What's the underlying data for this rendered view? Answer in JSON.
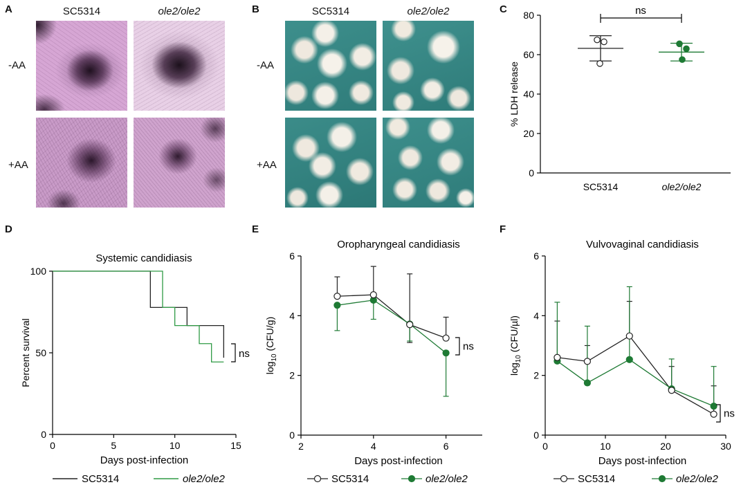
{
  "colors": {
    "wt": "#222222",
    "mut": "#1e7a34",
    "mut_line": "#2e9a44"
  },
  "panelA": {
    "letter": "A",
    "col1": "SC5314",
    "col2": "ole2/ole2",
    "row1": "-AA",
    "row2": "+AA"
  },
  "panelB": {
    "letter": "B",
    "col1": "SC5314",
    "col2": "ole2/ole2",
    "row1": "-AA",
    "row2": "+AA"
  },
  "panelC": {
    "letter": "C",
    "significance": "ns"
  },
  "panelD": {
    "letter": "D",
    "legend_wt": "SC5314",
    "legend_mut": "ole2/ole2",
    "significance": "ns"
  },
  "panelE": {
    "letter": "E",
    "legend_wt": "SC5314",
    "legend_mut": "ole2/ole2",
    "significance": "ns"
  },
  "panelF": {
    "letter": "F",
    "legend_wt": "SC5314",
    "legend_mut": "ole2/ole2",
    "significance": "ns"
  },
  "chart_data": [
    {
      "id": "C",
      "type": "scatter",
      "title": "",
      "xlabel": "",
      "ylabel": "% LDH release",
      "categories": [
        "SC5314",
        "ole2/ole2"
      ],
      "ylim": [
        0,
        80
      ],
      "yticks": [
        0,
        20,
        40,
        60,
        80
      ],
      "series": [
        {
          "name": "SC5314",
          "points": [
            67.5,
            66.5,
            55.5
          ],
          "mean": 63.2,
          "err_low": 56.8,
          "err_high": 69.6
        },
        {
          "name": "ole2/ole2",
          "points": [
            65.5,
            63.0,
            57.5
          ],
          "mean": 61.3,
          "err_low": 56.8,
          "err_high": 65.8
        }
      ]
    },
    {
      "id": "D",
      "type": "line",
      "step": true,
      "title": "Systemic candidiasis",
      "xlabel": "Days post-infection",
      "ylabel": "Percent survival",
      "xlim": [
        0,
        15
      ],
      "ylim": [
        0,
        100
      ],
      "xticks": [
        0,
        5,
        10,
        15
      ],
      "yticks": [
        0,
        50,
        100
      ],
      "series": [
        {
          "name": "SC5314",
          "x": [
            0,
            8,
            11,
            14
          ],
          "y": [
            100,
            77.8,
            66.7,
            55.6
          ]
        },
        {
          "name": "ole2/ole2",
          "x": [
            0,
            9,
            10,
            12,
            13,
            14
          ],
          "y": [
            100,
            77.8,
            66.7,
            55.6,
            44.4,
            44.4
          ]
        }
      ]
    },
    {
      "id": "E",
      "type": "line",
      "title": "Oropharyngeal candidiasis",
      "xlabel": "Days post-infection",
      "ylabel_main": "log",
      "ylabel_sub": "10",
      "ylabel_rest": " (CFU/g)",
      "xlim": [
        2,
        7
      ],
      "ylim": [
        0,
        6
      ],
      "xticks": [
        2,
        4,
        6
      ],
      "yticks": [
        0,
        2,
        4,
        6
      ],
      "series": [
        {
          "name": "SC5314",
          "x": [
            3,
            4,
            5,
            6
          ],
          "y": [
            4.65,
            4.7,
            3.7,
            3.25
          ],
          "err_high": [
            5.3,
            5.65,
            5.4,
            3.95
          ],
          "err_low": [
            null,
            null,
            3.1,
            null
          ]
        },
        {
          "name": "ole2/ole2",
          "x": [
            3,
            4,
            5,
            6
          ],
          "y": [
            4.35,
            4.52,
            3.72,
            2.75
          ],
          "err_high": [
            null,
            null,
            null,
            null
          ],
          "err_low": [
            3.5,
            3.88,
            3.15,
            1.3
          ]
        }
      ]
    },
    {
      "id": "F",
      "type": "line",
      "title": "Vulvovaginal candidiasis",
      "xlabel": "Days post-infection",
      "ylabel_main": "log",
      "ylabel_sub": "10",
      "ylabel_rest": " (CFU/µl)",
      "xlim": [
        0,
        30
      ],
      "ylim": [
        0,
        6
      ],
      "xticks": [
        0,
        10,
        20,
        30
      ],
      "yticks": [
        0,
        2,
        4,
        6
      ],
      "series": [
        {
          "name": "SC5314",
          "x": [
            2,
            7,
            14,
            21,
            28
          ],
          "y": [
            2.6,
            2.47,
            3.32,
            1.5,
            0.7
          ],
          "err_high": [
            3.82,
            3.0,
            4.48,
            2.3,
            1.65
          ]
        },
        {
          "name": "ole2/ole2",
          "x": [
            2,
            7,
            14,
            21,
            28
          ],
          "y": [
            2.48,
            1.75,
            2.53,
            1.55,
            0.97
          ],
          "err_high": [
            4.45,
            3.65,
            4.97,
            2.55,
            2.3
          ]
        }
      ]
    }
  ]
}
